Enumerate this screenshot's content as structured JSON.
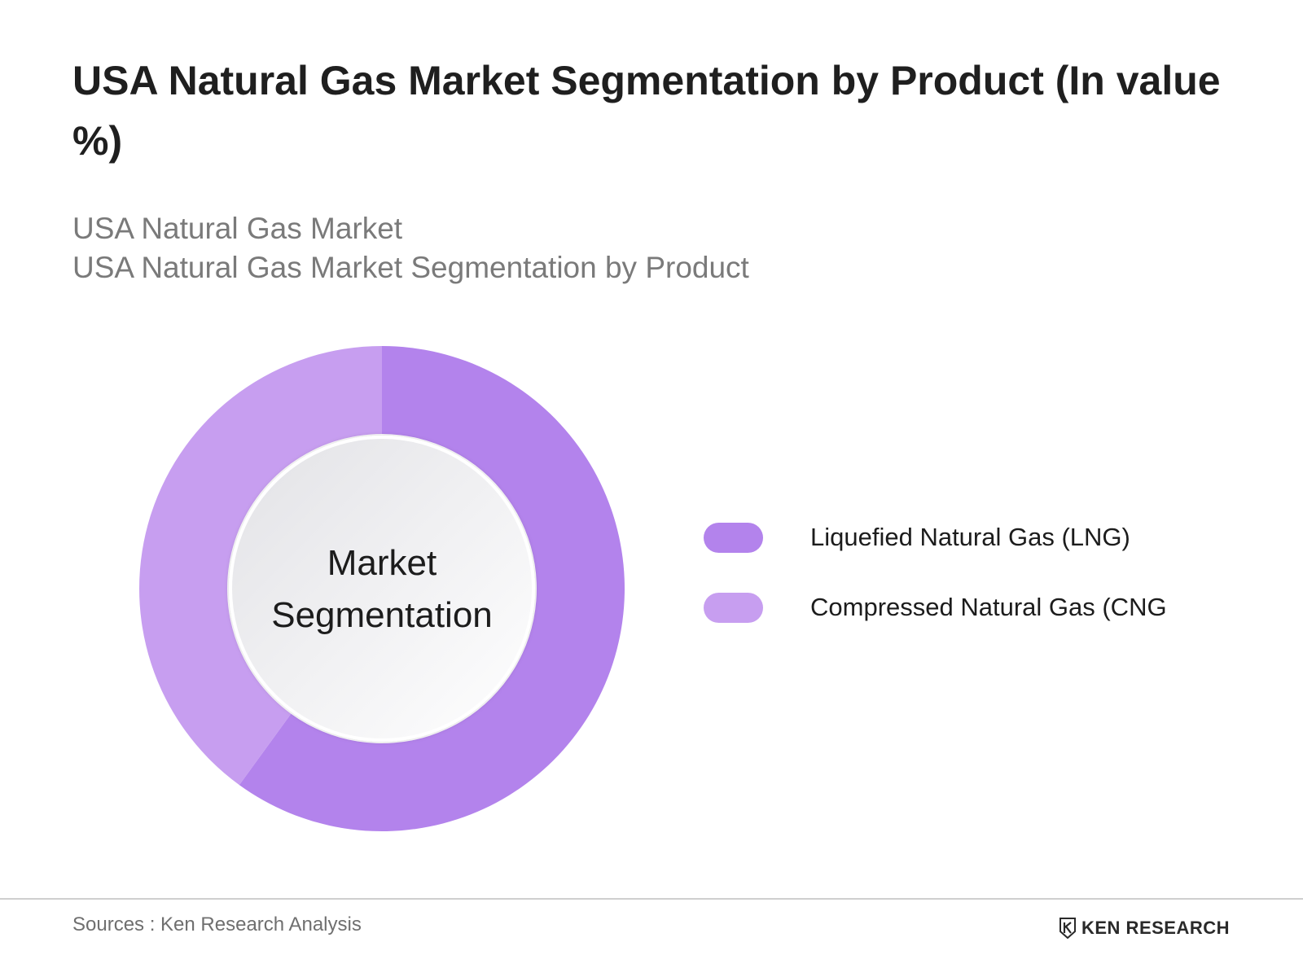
{
  "chart_data": {
    "type": "pie",
    "title": "USA Natural Gas Market Segmentation by Product (In value %)",
    "subtitle_lines": [
      "USA Natural Gas Market",
      "USA Natural Gas Market Segmentation by Product"
    ],
    "center_label": "Market Segmentation",
    "donut": true,
    "legend_position": "right",
    "series": [
      {
        "name": "Liquefied Natural Gas (LNG)",
        "value": 60,
        "color": "#b383ec"
      },
      {
        "name": "Compressed Natural Gas (CNG",
        "value": 40,
        "color": "#c79ef0"
      }
    ]
  },
  "footer": {
    "source": "Sources : Ken Research Analysis",
    "brand": "KEN RESEARCH",
    "brand_mark": "K"
  }
}
